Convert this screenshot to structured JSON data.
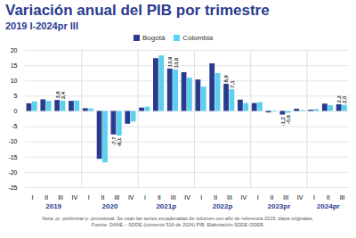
{
  "chart_data": {
    "type": "bar",
    "title": "Variación anual del PIB por trimestre",
    "subtitle": "2019 I-2024pr III",
    "categories": [
      "I",
      "II",
      "III",
      "IV",
      "I",
      "II",
      "III",
      "IV",
      "I",
      "II",
      "III",
      "IV",
      "I",
      "II",
      "III",
      "IV",
      "I",
      "II",
      "III",
      "IV",
      "I",
      "II",
      "III"
    ],
    "category_groups": [
      "2019",
      "2019",
      "2019",
      "2019",
      "2020",
      "2020",
      "2020",
      "2020",
      "2021p",
      "2021p",
      "2021p",
      "2021p",
      "2022p",
      "2022p",
      "2022p",
      "2022p",
      "2023pr",
      "2023pr",
      "2023pr",
      "2023pr",
      "2024pr",
      "2024pr",
      "2024pr"
    ],
    "series": [
      {
        "name": "Bogotá",
        "color": "#2a3b8f",
        "values": [
          2.5,
          3.8,
          3.6,
          3.3,
          0.9,
          -15.7,
          -7.7,
          -4.2,
          1.1,
          17.3,
          13.9,
          12.7,
          10.3,
          15.6,
          8.9,
          3.7,
          2.6,
          -0.5,
          -1.2,
          0.7,
          0.4,
          2.4,
          2.2
        ],
        "value_labels": [
          null,
          null,
          "3,6",
          null,
          null,
          null,
          "-7,7",
          null,
          null,
          null,
          "13,9",
          null,
          null,
          null,
          "8,9",
          null,
          null,
          null,
          "-1,2",
          null,
          null,
          null,
          "2,2"
        ]
      },
      {
        "name": "Colombia",
        "color": "#5cd0ef",
        "values": [
          3.1,
          3.3,
          3.4,
          3.4,
          0.8,
          -16.9,
          -8.1,
          -3.5,
          1.4,
          18.2,
          13.6,
          10.9,
          8.0,
          12.4,
          7.1,
          2.6,
          2.9,
          0.2,
          -0.6,
          0.3,
          0.6,
          1.9,
          2.0
        ],
        "value_labels": [
          null,
          null,
          "3,4",
          null,
          null,
          null,
          "-8,1",
          null,
          null,
          null,
          "13,6",
          null,
          null,
          null,
          "7,1",
          null,
          null,
          null,
          "-0,6",
          null,
          null,
          null,
          "2,0"
        ]
      }
    ],
    "ylim": [
      -25,
      20
    ],
    "yticks": [
      -25,
      -20,
      -15,
      -10,
      -5,
      0,
      5,
      10,
      15,
      20
    ],
    "grid": true,
    "legend": "top",
    "data_labels": true,
    "notes": [
      "Nota: pr: preliminar p: provisional.  Se usan las series encadenadas de volumen con año de referencia 2015, datos originales.",
      "Fuente: DANE – SDDE (convenio 516 de 2024) PIB. Elaboración SDDE-ODEB."
    ]
  }
}
